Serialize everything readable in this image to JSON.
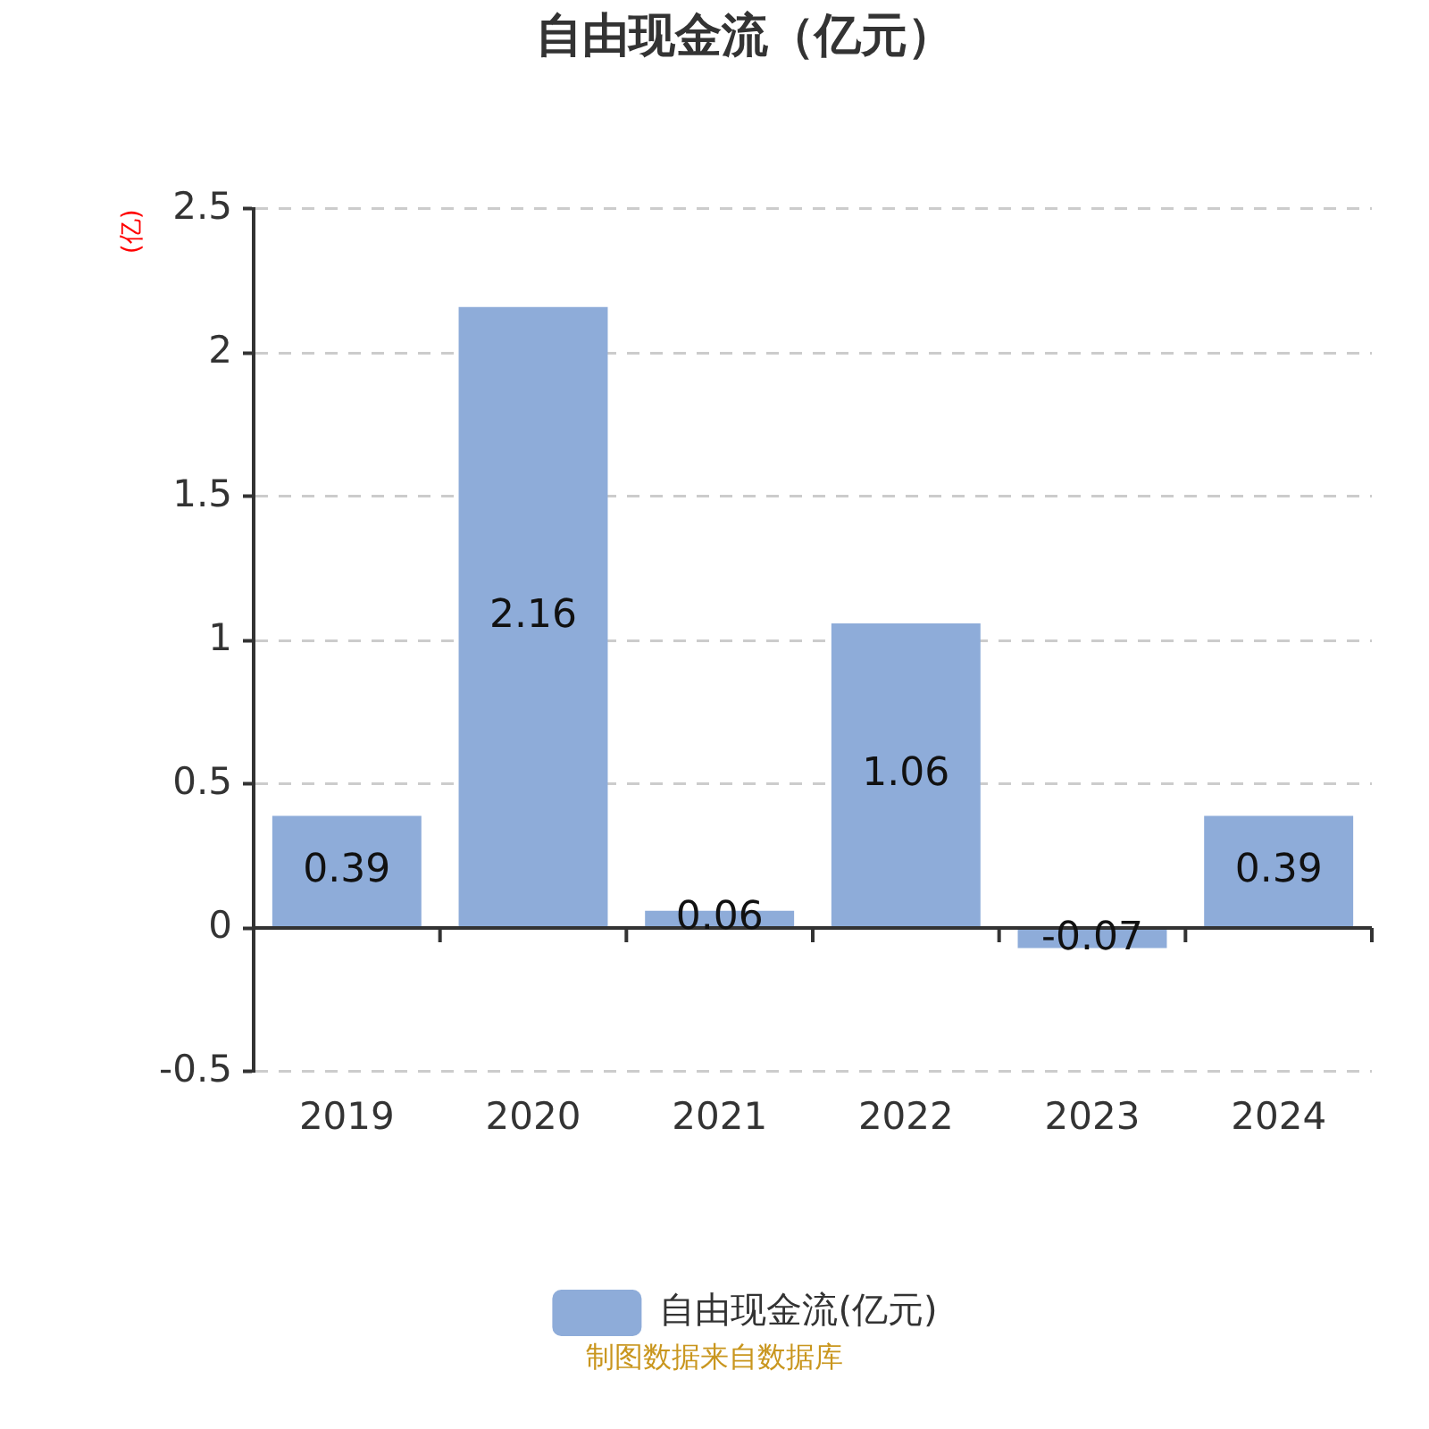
{
  "chart_data": {
    "type": "bar",
    "title": "自由现金流（亿元）",
    "ylabel": "(亿)",
    "categories": [
      "2019",
      "2020",
      "2021",
      "2022",
      "2023",
      "2024"
    ],
    "series": [
      {
        "name": "自由现金流(亿元)",
        "color": "#8eacd9",
        "values": [
          0.39,
          2.16,
          0.06,
          1.06,
          -0.07,
          0.39
        ]
      }
    ],
    "ylim": [
      -0.5,
      2.5
    ],
    "yticks": [
      -0.5,
      0,
      0.5,
      1,
      1.5,
      2,
      2.5
    ],
    "grid": "y",
    "legend": "bottom",
    "data_labels": true,
    "annotations": [
      "制图数据来自数据库"
    ]
  }
}
